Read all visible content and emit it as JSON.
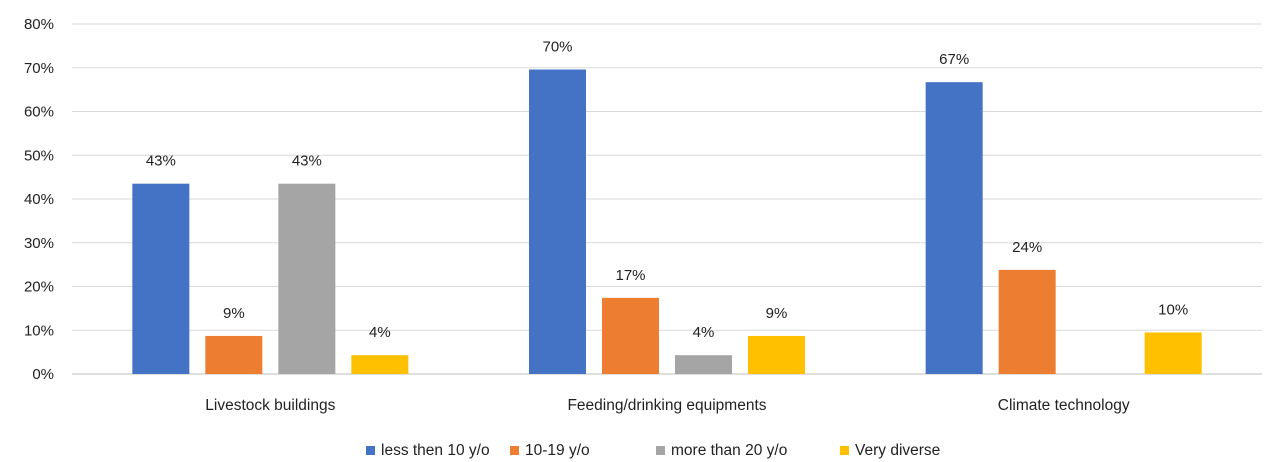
{
  "chart_data": {
    "type": "bar",
    "title": "",
    "xlabel": "",
    "ylabel": "",
    "ylim": [
      0,
      80
    ],
    "yticks": [
      "0%",
      "10%",
      "20%",
      "30%",
      "40%",
      "50%",
      "60%",
      "70%",
      "80%"
    ],
    "grid": true,
    "legend_position": "bottom",
    "categories": [
      "Livestock buildings",
      "Feeding/drinking equipments",
      "Climate technology"
    ],
    "series": [
      {
        "name": "less then 10 y/o",
        "color": "#4472c4",
        "values": [
          43.5,
          69.6,
          66.7
        ],
        "labels": [
          "43%",
          "70%",
          "67%"
        ]
      },
      {
        "name": "10-19 y/o",
        "color": "#ed7d31",
        "values": [
          8.7,
          17.4,
          23.8
        ],
        "labels": [
          "9%",
          "17%",
          "24%"
        ]
      },
      {
        "name": "more than 20 y/o",
        "color": "#a5a5a5",
        "values": [
          43.5,
          4.3,
          0
        ],
        "labels": [
          "43%",
          "4%",
          ""
        ]
      },
      {
        "name": "Very diverse",
        "color": "#ffc000",
        "values": [
          4.3,
          8.7,
          9.5
        ],
        "labels": [
          "4%",
          "9%",
          "10%"
        ]
      }
    ]
  }
}
